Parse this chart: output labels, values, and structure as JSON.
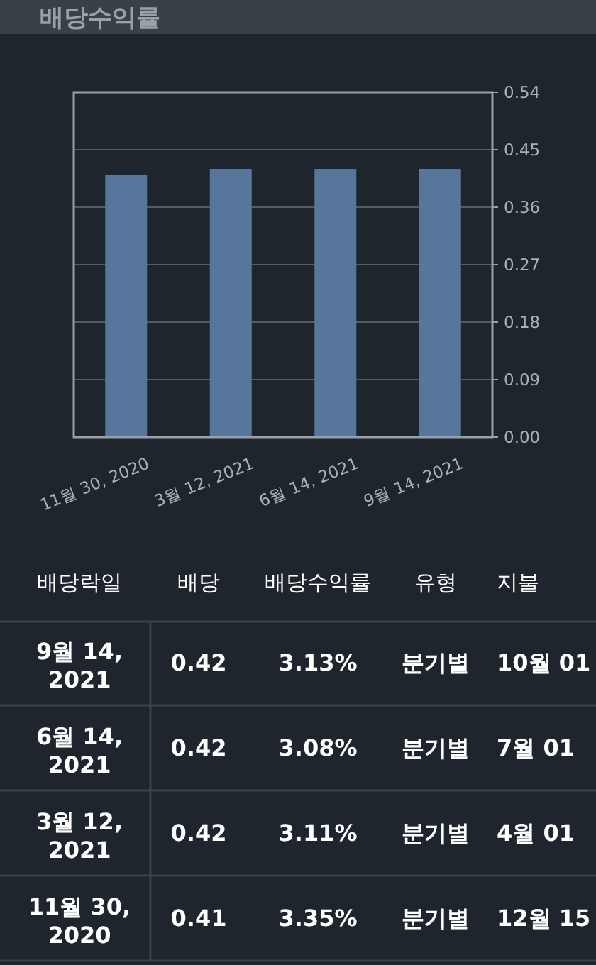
{
  "chart_data": [
    {
      "type": "bar",
      "title": "배당수익률",
      "categories": [
        "11월 30, 2020",
        "3월 12, 2021",
        "6월 14, 2021",
        "9월 14, 2021"
      ],
      "values": [
        0.41,
        0.42,
        0.42,
        0.42
      ],
      "color": "#56769b",
      "ylim": [
        0,
        0.54
      ],
      "yticks": [
        {
          "value": 0,
          "label": "0.00"
        },
        {
          "value": 0.09,
          "label": "0.09"
        },
        {
          "value": 0.18,
          "label": "0.18"
        },
        {
          "value": 0.27,
          "label": "0.27"
        },
        {
          "value": 0.36,
          "label": "0.36"
        },
        {
          "value": 0.45,
          "label": "0.45"
        },
        {
          "value": 0.54,
          "label": "0.54"
        }
      ],
      "grid": "y"
    },
    {
      "type": "other",
      "annotations": [
        "배당락일",
        "배당",
        "배당수익률",
        "유형",
        "지불",
        "9월 14, 2021",
        "0.42",
        "3.13%",
        "분기별",
        "10월 01",
        "6월 14, 2021",
        "0.42",
        "3.08%",
        "분기별",
        "7월 01",
        "3월 12, 2021",
        "0.42",
        "3.11%",
        "분기별",
        "4월 01",
        "11월 30, 2020",
        "0.41",
        "3.35%",
        "분기별",
        "12월 15"
      ]
    }
  ]
}
